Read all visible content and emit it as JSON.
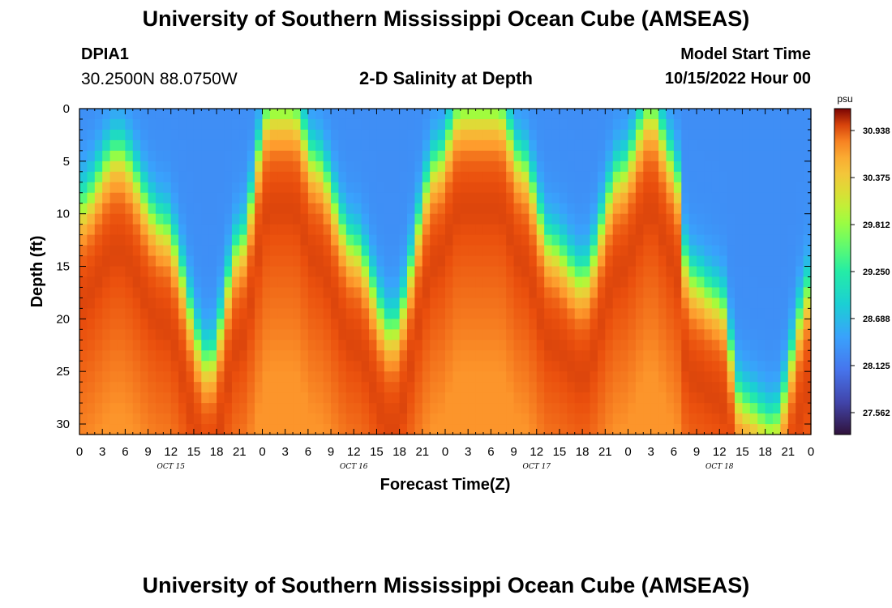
{
  "header": {
    "title": "University of Southern Mississippi Ocean Cube (AMSEAS)",
    "station_id": "DPIA1",
    "station_coords": "30.2500N  88.0750W",
    "chart_title": "2-D Salinity at Depth",
    "start_label": "Model Start Time",
    "start_value": "10/15/2022 Hour 00"
  },
  "footer": {
    "title": "University of Southern Mississippi Ocean Cube (AMSEAS)"
  },
  "chart_data": {
    "type": "heatmap",
    "title": "2-D Salinity at Depth",
    "xlabel": "Forecast Time(Z)",
    "ylabel": "Depth (ft)",
    "xlim": [
      0,
      96
    ],
    "ylim": [
      0,
      31
    ],
    "x_tick_values": [
      0,
      3,
      6,
      9,
      12,
      15,
      18,
      21,
      24,
      27,
      30,
      33,
      36,
      39,
      42,
      45,
      48,
      51,
      54,
      57,
      60,
      63,
      66,
      69,
      72,
      75,
      78,
      81,
      84,
      87,
      90,
      93,
      96
    ],
    "x_tick_labels": [
      "0",
      "3",
      "6",
      "9",
      "12",
      "15",
      "18",
      "21",
      "0",
      "3",
      "6",
      "9",
      "12",
      "15",
      "18",
      "21",
      "0",
      "3",
      "6",
      "9",
      "12",
      "15",
      "18",
      "21",
      "0",
      "3",
      "6",
      "9",
      "12",
      "15",
      "18",
      "21",
      "0"
    ],
    "date_labels": [
      {
        "hour": 12,
        "label": "OCT 15"
      },
      {
        "hour": 36,
        "label": "OCT 16"
      },
      {
        "hour": 60,
        "label": "OCT 17"
      },
      {
        "hour": 84,
        "label": "OCT 18"
      }
    ],
    "y_tick_values": [
      0,
      5,
      10,
      15,
      20,
      25,
      30
    ],
    "y_tick_labels": [
      "0",
      "5",
      "10",
      "15",
      "20",
      "25",
      "30"
    ],
    "colorbar": {
      "unit": "psu",
      "range": [
        27.3,
        31.2
      ],
      "tick_values": [
        30.938,
        30.375,
        29.812,
        29.25,
        28.688,
        28.125,
        27.562
      ],
      "tick_labels": [
        "30.938",
        "30.375",
        "29.812",
        "29.250",
        "28.688",
        "28.125",
        "27.562"
      ]
    },
    "salinity_model": {
      "fresh_value": 28.3,
      "salt_value": 31.0,
      "profiles": [
        {
          "hour": 0,
          "interface_depth": 9
        },
        {
          "hour": 5,
          "interface_depth": 4
        },
        {
          "hour": 11,
          "interface_depth": 11
        },
        {
          "hour": 17,
          "interface_depth": 24
        },
        {
          "hour": 21,
          "interface_depth": 13
        },
        {
          "hour": 25,
          "interface_depth": 0
        },
        {
          "hour": 28,
          "interface_depth": 0
        },
        {
          "hour": 31,
          "interface_depth": 5
        },
        {
          "hour": 36,
          "interface_depth": 13
        },
        {
          "hour": 41,
          "interface_depth": 21
        },
        {
          "hour": 47,
          "interface_depth": 5
        },
        {
          "hour": 50,
          "interface_depth": 0
        },
        {
          "hour": 55,
          "interface_depth": 0
        },
        {
          "hour": 58,
          "interface_depth": 5
        },
        {
          "hour": 62,
          "interface_depth": 13
        },
        {
          "hour": 66,
          "interface_depth": 16
        },
        {
          "hour": 71,
          "interface_depth": 6
        },
        {
          "hour": 75,
          "interface_depth": 0
        },
        {
          "hour": 78,
          "interface_depth": 5
        },
        {
          "hour": 80,
          "interface_depth": 16
        },
        {
          "hour": 84,
          "interface_depth": 18
        },
        {
          "hour": 87,
          "interface_depth": 28
        },
        {
          "hour": 91,
          "interface_depth": 30
        },
        {
          "hour": 96,
          "interface_depth": 17
        }
      ]
    }
  }
}
